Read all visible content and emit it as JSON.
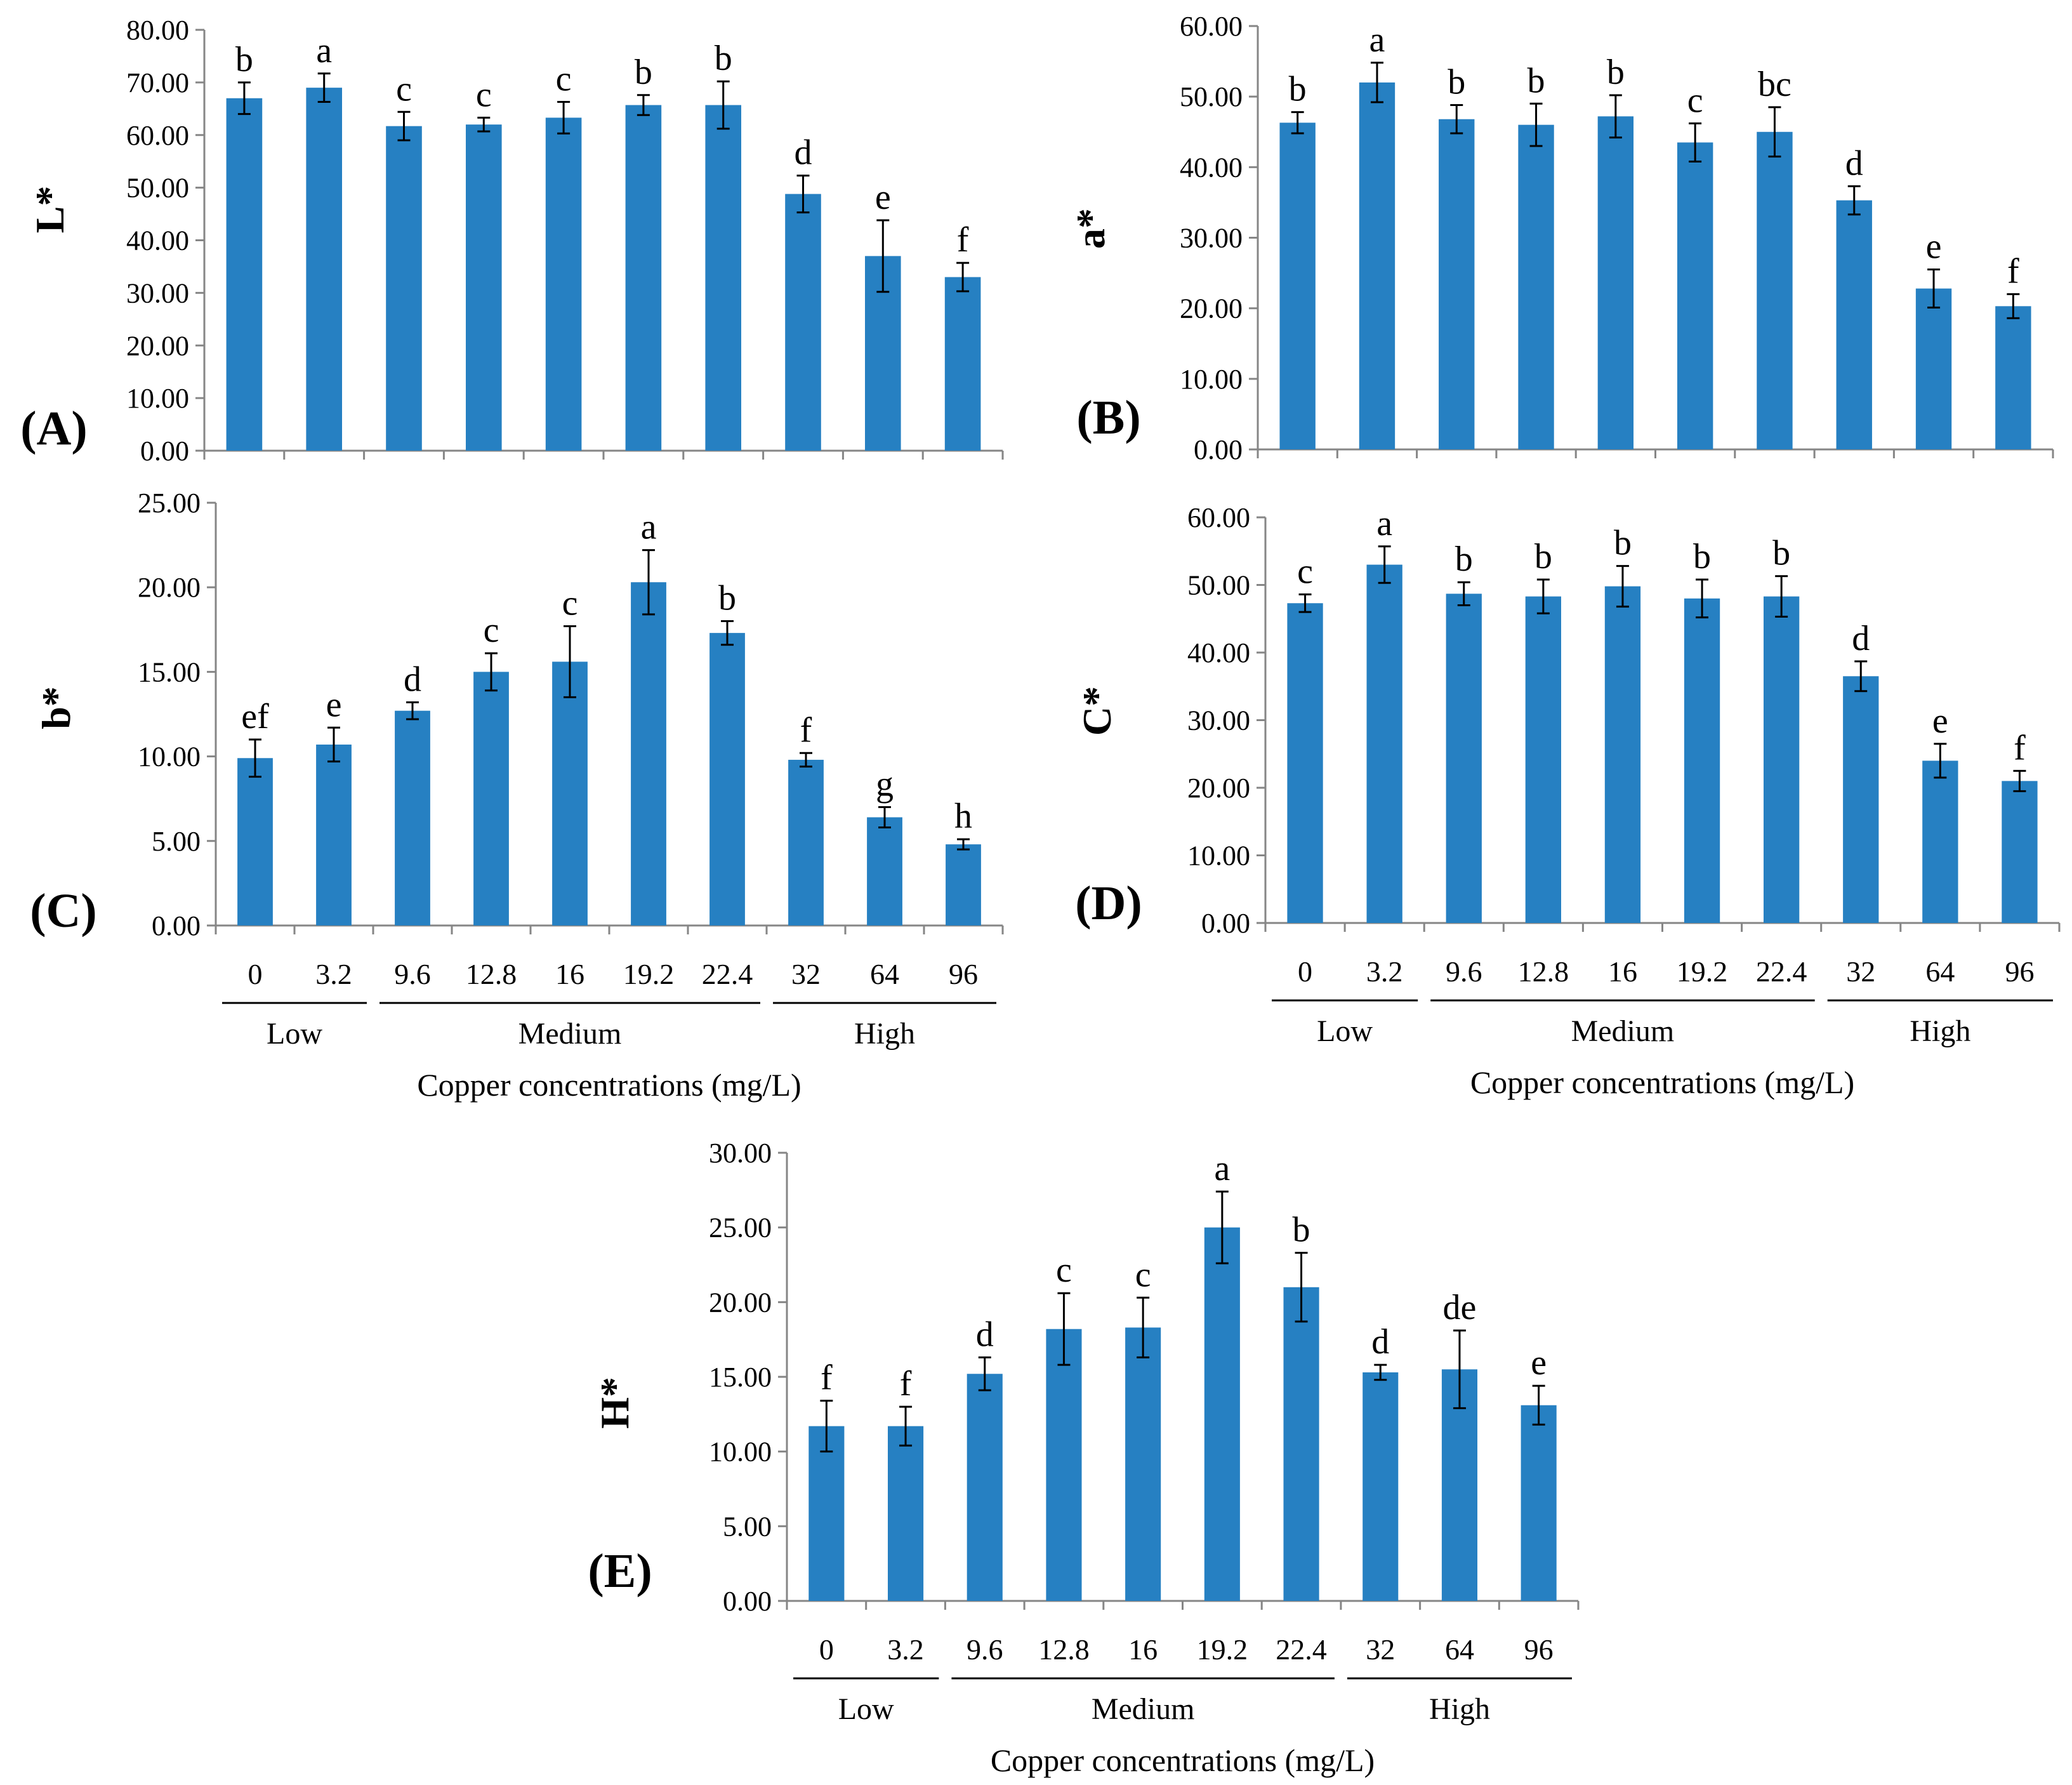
{
  "figure": {
    "x_axis_title": "Copper concentrations (mg/L)",
    "categories": [
      "0",
      "3.2",
      "9.6",
      "12.8",
      "16",
      "19.2",
      "22.4",
      "32",
      "64",
      "96"
    ],
    "groups": [
      {
        "label": "Low",
        "from": 0,
        "to": 1
      },
      {
        "label": "Medium",
        "from": 2,
        "to": 6
      },
      {
        "label": "High",
        "from": 7,
        "to": 9
      }
    ],
    "bar_color": "#2680c2"
  },
  "chart_data": [
    {
      "id": "A",
      "panel_label": "(A)",
      "type": "bar",
      "ylabel": "L*",
      "ylim": [
        0,
        80
      ],
      "ytick_step": 10,
      "yticks": [
        "0.00",
        "10.00",
        "20.00",
        "30.00",
        "40.00",
        "50.00",
        "60.00",
        "70.00",
        "80.00"
      ],
      "values": [
        67.0,
        69.0,
        61.7,
        62.0,
        63.3,
        65.7,
        65.7,
        48.8,
        37.0,
        33.0
      ],
      "errors": [
        3.0,
        2.7,
        2.7,
        1.3,
        3.0,
        1.9,
        4.5,
        3.5,
        6.8,
        2.7
      ],
      "letters": [
        "b",
        "a",
        "c",
        "c",
        "c",
        "b",
        "b",
        "d",
        "e",
        "f"
      ],
      "show_xaxis": false
    },
    {
      "id": "B",
      "panel_label": "(B)",
      "type": "bar",
      "ylabel": "a*",
      "ylim": [
        0,
        60
      ],
      "ytick_step": 10,
      "yticks": [
        "0.00",
        "10.00",
        "20.00",
        "30.00",
        "40.00",
        "50.00",
        "60.00"
      ],
      "values": [
        46.3,
        52.0,
        46.8,
        46.0,
        47.2,
        43.5,
        45.0,
        35.3,
        22.8,
        20.3
      ],
      "errors": [
        1.5,
        2.8,
        2.0,
        3.0,
        3.0,
        2.7,
        3.5,
        2.0,
        2.7,
        1.7
      ],
      "letters": [
        "b",
        "a",
        "b",
        "b",
        "b",
        "c",
        "bc",
        "d",
        "e",
        "f"
      ],
      "show_xaxis": false
    },
    {
      "id": "C",
      "panel_label": "(C)",
      "type": "bar",
      "ylabel": "b*",
      "ylim": [
        0,
        25
      ],
      "ytick_step": 5,
      "yticks": [
        "0.00",
        "5.00",
        "10.00",
        "15.00",
        "20.00",
        "25.00"
      ],
      "values": [
        9.9,
        10.7,
        12.7,
        15.0,
        15.6,
        20.3,
        17.3,
        9.8,
        6.4,
        4.8
      ],
      "errors": [
        1.1,
        1.0,
        0.5,
        1.1,
        2.1,
        1.9,
        0.7,
        0.4,
        0.6,
        0.3
      ],
      "letters": [
        "ef",
        "e",
        "d",
        "c",
        "c",
        "a",
        "b",
        "f",
        "g",
        "h"
      ],
      "show_xaxis": true
    },
    {
      "id": "D",
      "panel_label": "(D)",
      "type": "bar",
      "ylabel": "C*",
      "ylim": [
        0,
        60
      ],
      "ytick_step": 10,
      "yticks": [
        "0.00",
        "10.00",
        "20.00",
        "30.00",
        "40.00",
        "50.00",
        "60.00"
      ],
      "values": [
        47.3,
        53.0,
        48.7,
        48.3,
        49.8,
        48.0,
        48.3,
        36.5,
        24.0,
        21.0
      ],
      "errors": [
        1.3,
        2.7,
        1.7,
        2.5,
        3.0,
        2.8,
        3.0,
        2.2,
        2.5,
        1.5
      ],
      "letters": [
        "c",
        "a",
        "b",
        "b",
        "b",
        "b",
        "b",
        "d",
        "e",
        "f"
      ],
      "show_xaxis": true
    },
    {
      "id": "E",
      "panel_label": "(E)",
      "type": "bar",
      "ylabel": "H*",
      "ylim": [
        0,
        30
      ],
      "ytick_step": 5,
      "yticks": [
        "0.00",
        "5.00",
        "10.00",
        "15.00",
        "20.00",
        "25.00",
        "30.00"
      ],
      "values": [
        11.7,
        11.7,
        15.2,
        18.2,
        18.3,
        25.0,
        21.0,
        15.3,
        15.5,
        13.1
      ],
      "errors": [
        1.7,
        1.3,
        1.1,
        2.4,
        2.0,
        2.4,
        2.3,
        0.5,
        2.6,
        1.3
      ],
      "letters": [
        "f",
        "f",
        "d",
        "c",
        "c",
        "a",
        "b",
        "d",
        "de",
        "e"
      ],
      "show_xaxis": true
    }
  ]
}
